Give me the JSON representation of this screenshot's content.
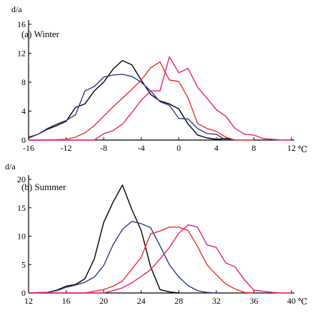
{
  "chart_data": [
    {
      "type": "line",
      "title": "(a) Winter",
      "ylabel": "d/a",
      "xlabel": "",
      "x_unit": "℃",
      "xlim": [
        -16,
        12
      ],
      "ylim": [
        0,
        16
      ],
      "x_ticks": [
        -16,
        -12,
        -8,
        -4,
        0,
        4,
        8,
        12
      ],
      "x_tick_labels": [
        "-16",
        "-12",
        "-8",
        "-4",
        "0",
        "4",
        "8",
        "12"
      ],
      "y_ticks": [
        0,
        4,
        8,
        12,
        16
      ],
      "y_tick_labels": [
        "0",
        "4",
        "8",
        "12",
        "16"
      ],
      "grid": false,
      "series": [
        {
          "color": "#000000",
          "x": [
            -16,
            -15,
            -14,
            -13,
            -12,
            -11,
            -10,
            -9,
            -8,
            -7,
            -6,
            -5,
            -4,
            -3,
            -2,
            -1,
            0,
            1,
            2,
            3,
            4,
            5,
            6
          ],
          "values": [
            0.3,
            0.8,
            1.5,
            2.0,
            2.6,
            4.5,
            5.0,
            6.8,
            8.0,
            9.8,
            11.0,
            10.4,
            8.3,
            6.3,
            5.4,
            5.0,
            4.3,
            2.2,
            0.7,
            0.3,
            0.1,
            0.2,
            0.0
          ]
        },
        {
          "color": "#2e3a8c",
          "x": [
            -16,
            -15,
            -14,
            -13,
            -12,
            -11,
            -10,
            -9,
            -8,
            -7,
            -6,
            -5,
            -4,
            -3,
            -2,
            -1,
            0,
            1,
            2,
            3,
            4,
            5,
            6
          ],
          "values": [
            0.4,
            0.8,
            1.6,
            2.2,
            2.7,
            3.5,
            6.8,
            7.4,
            8.7,
            9.0,
            9.1,
            8.8,
            8.0,
            6.8,
            5.3,
            4.8,
            3.0,
            2.9,
            1.6,
            0.9,
            0.8,
            0.0,
            0.0
          ]
        },
        {
          "color": "#e8302c",
          "x": [
            -16,
            -14,
            -12,
            -11,
            -10,
            -9,
            -8,
            -7,
            -6,
            -5,
            -4,
            -3,
            -2,
            -1,
            0,
            1,
            2,
            3,
            4,
            5,
            6,
            7,
            8
          ],
          "values": [
            0.0,
            0.0,
            0.1,
            0.4,
            1.0,
            2.0,
            3.3,
            4.6,
            5.8,
            7.0,
            8.3,
            10.0,
            10.8,
            8.3,
            8.1,
            5.8,
            2.3,
            1.6,
            1.2,
            0.4,
            0.0,
            0.0,
            0.0
          ]
        },
        {
          "color": "#e8207a",
          "x": [
            -16,
            -12,
            -10,
            -9,
            -8,
            -7,
            -6,
            -5,
            -4,
            -3,
            -2,
            -1,
            0,
            1,
            2,
            3,
            4,
            5,
            6,
            7,
            8,
            9,
            10,
            11,
            12
          ],
          "values": [
            0.0,
            0.0,
            0.0,
            0.0,
            0.9,
            1.3,
            2.2,
            3.8,
            5.5,
            6.8,
            6.8,
            11.5,
            9.3,
            9.9,
            7.3,
            5.8,
            4.2,
            3.3,
            1.6,
            0.8,
            0.7,
            0.2,
            0.1,
            0.0,
            0.0
          ]
        }
      ]
    },
    {
      "type": "line",
      "title": "(b) Summer",
      "ylabel": "d/a",
      "xlabel": "",
      "x_unit": "℃",
      "xlim": [
        12,
        40
      ],
      "ylim": [
        0,
        20
      ],
      "x_ticks": [
        12,
        16,
        20,
        24,
        28,
        32,
        36,
        40
      ],
      "x_tick_labels": [
        "12",
        "16",
        "20",
        "24",
        "28",
        "32",
        "36",
        "40"
      ],
      "y_ticks": [
        0,
        5,
        10,
        15,
        20
      ],
      "y_tick_labels": [
        "0",
        "5",
        "10",
        "15",
        "20"
      ],
      "grid": false,
      "series": [
        {
          "color": "#000000",
          "x": [
            12,
            14,
            15,
            16,
            17,
            18,
            19,
            20,
            21,
            22,
            23,
            24,
            25,
            26,
            27,
            28
          ],
          "values": [
            0.0,
            0.1,
            0.5,
            1.2,
            1.5,
            2.5,
            6.0,
            12.4,
            16.0,
            19.0,
            14.7,
            11.0,
            4.6,
            0.6,
            0.2,
            0.0
          ]
        },
        {
          "color": "#2e3a8c",
          "x": [
            12,
            14,
            15,
            16,
            17,
            18,
            19,
            20,
            21,
            22,
            23,
            24,
            25,
            26,
            27,
            28,
            29,
            30,
            31,
            32
          ],
          "values": [
            0.0,
            0.1,
            0.4,
            1.0,
            1.4,
            1.9,
            2.8,
            4.8,
            8.5,
            11.2,
            12.6,
            12.2,
            11.5,
            8.3,
            5.0,
            2.8,
            1.3,
            0.4,
            0.1,
            0.0
          ]
        },
        {
          "color": "#e8302c",
          "x": [
            12,
            16,
            18,
            19,
            20,
            21,
            22,
            23,
            24,
            25,
            26,
            27,
            28,
            29,
            30,
            31,
            32,
            33,
            34,
            35,
            36
          ],
          "values": [
            0.0,
            0.0,
            0.0,
            0.3,
            0.6,
            1.2,
            2.1,
            4.2,
            6.3,
            10.4,
            10.9,
            11.6,
            11.6,
            11.0,
            8.2,
            5.0,
            3.2,
            1.6,
            0.7,
            0.1,
            0.0
          ]
        },
        {
          "color": "#e8207a",
          "x": [
            12,
            18,
            20,
            21,
            22,
            23,
            24,
            25,
            26,
            27,
            28,
            29,
            30,
            31,
            32,
            33,
            34,
            35,
            36,
            37,
            38,
            39,
            40
          ],
          "values": [
            0.0,
            0.0,
            0.0,
            0.4,
            0.9,
            1.8,
            2.9,
            4.1,
            6.0,
            8.0,
            10.5,
            12.0,
            11.6,
            8.5,
            8.0,
            5.3,
            4.6,
            2.3,
            0.5,
            0.3,
            0.1,
            0.0,
            0.0
          ]
        }
      ]
    }
  ]
}
